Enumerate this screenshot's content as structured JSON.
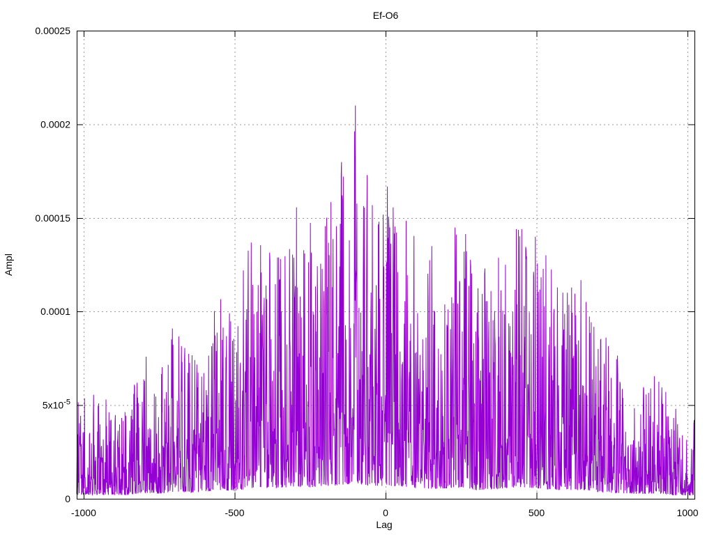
{
  "window": {
    "background": "#ffffff",
    "text_color": "#000000"
  },
  "chart_data": {
    "type": "line",
    "title": "Ef-O6",
    "xlabel": "Lag",
    "ylabel": "Ampl",
    "xlim": [
      -1023,
      1023
    ],
    "ylim": [
      0,
      0.00025
    ],
    "x_ticks": [
      {
        "v": -1000,
        "label": "-1000"
      },
      {
        "v": -500,
        "label": "-500"
      },
      {
        "v": 0,
        "label": "0"
      },
      {
        "v": 500,
        "label": "500"
      },
      {
        "v": 1000,
        "label": "1000"
      }
    ],
    "y_ticks": [
      {
        "v": 0,
        "label": "0"
      },
      {
        "v": 5e-05,
        "label": "5x10",
        "sup": "-5"
      },
      {
        "v": 0.0001,
        "label": "0.0001"
      },
      {
        "v": 0.00015,
        "label": "0.00015"
      },
      {
        "v": 0.0002,
        "label": "0.0002"
      },
      {
        "v": 0.00025,
        "label": "0.00025"
      }
    ],
    "grid": {
      "show": true,
      "style": "dotted",
      "color": "#9a9a9a"
    },
    "legend_position": "none",
    "series": [
      {
        "name": "Ef-O6",
        "color": "#9400d3",
        "style": "dense noise-like amplitude vs lag, one sample per integer lag (~2046 samples)",
        "lag_step": 1,
        "peak": {
          "lag": -100,
          "ampl": 0.00021
        },
        "envelope_max": [
          [
            -1023,
            5.2e-05
          ],
          [
            -950,
            5.7e-05
          ],
          [
            -900,
            5e-05
          ],
          [
            -850,
            5.3e-05
          ],
          [
            -800,
            8.2e-05
          ],
          [
            -750,
            6.6e-05
          ],
          [
            -700,
            9.6e-05
          ],
          [
            -650,
            8e-05
          ],
          [
            -600,
            9.4e-05
          ],
          [
            -550,
            0.000112
          ],
          [
            -500,
            0.000107
          ],
          [
            -450,
            0.000138
          ],
          [
            -400,
            0.000136
          ],
          [
            -350,
            0.000148
          ],
          [
            -300,
            0.00016
          ],
          [
            -250,
            0.000153
          ],
          [
            -200,
            0.000172
          ],
          [
            -150,
            0.000181
          ],
          [
            -100,
            0.00021
          ],
          [
            -50,
            0.000178
          ],
          [
            0,
            0.000168
          ],
          [
            50,
            0.000167
          ],
          [
            100,
            0.000142
          ],
          [
            150,
            0.000135
          ],
          [
            200,
            0.00014
          ],
          [
            250,
            0.000157
          ],
          [
            300,
            0.000115
          ],
          [
            350,
            0.00013
          ],
          [
            400,
            0.000142
          ],
          [
            450,
            0.000157
          ],
          [
            500,
            0.00014
          ],
          [
            550,
            0.000126
          ],
          [
            600,
            0.00011
          ],
          [
            650,
            0.000119
          ],
          [
            700,
            9.6e-05
          ],
          [
            750,
            8e-05
          ],
          [
            800,
            7.3e-05
          ],
          [
            850,
            6.4e-05
          ],
          [
            900,
            7.2e-05
          ],
          [
            950,
            5e-05
          ],
          [
            1023,
            4.5e-05
          ]
        ],
        "baseline_mean_fraction_of_envelope": 0.29,
        "noise_exponent": 2.5,
        "noise_floor_fraction": 0.04,
        "seed": 20140625
      }
    ]
  }
}
